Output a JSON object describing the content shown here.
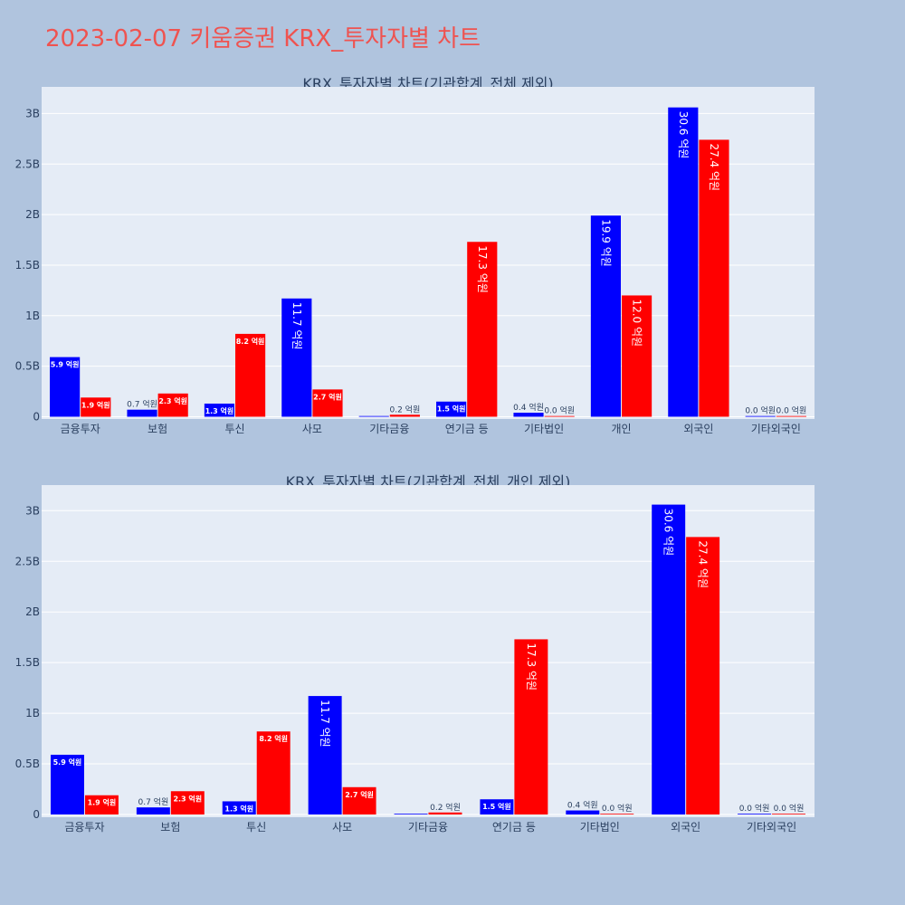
{
  "page_title": "2023-02-07 키움증권 KRX_투자자별 차트",
  "colors": {
    "series1": "#0000ff",
    "series2": "#ff0000",
    "plot_bg": "#e5ecf6",
    "page_bg": "#b0c4de",
    "title": "#ef5350"
  },
  "chart_data": [
    {
      "type": "bar",
      "title": "KRX_투자자별 차트(기관합계_전체 제외)",
      "categories": [
        "금융투자",
        "보험",
        "투신",
        "사모",
        "기타금융",
        "연기금 등",
        "기타법인",
        "개인",
        "외국인",
        "기타외국인"
      ],
      "series": [
        {
          "values": [
            0.59,
            0.07,
            0.13,
            1.17,
            0.0,
            0.15,
            0.04,
            1.99,
            3.06,
            0.002
          ],
          "labels": [
            "5.9 억원",
            "0.7 억원",
            "1.3 억원",
            "11.7 억원",
            "",
            "1.5 억원",
            "0.4 억원",
            "19.9 억원",
            "30.6 억원",
            "0.0 억원"
          ]
        },
        {
          "values": [
            0.19,
            0.23,
            0.82,
            0.27,
            0.02,
            1.73,
            0.003,
            1.2,
            2.74,
            0.002
          ],
          "labels": [
            "1.9 억원",
            "2.3 억원",
            "8.2 억원",
            "2.7 억원",
            "0.2 억원",
            "17.3 억원",
            "0.0 억원",
            "12.0 억원",
            "27.4 억원",
            "0.0 억원"
          ]
        }
      ],
      "yticks": [
        "0",
        "0.5B",
        "1B",
        "1.5B",
        "2B",
        "2.5B",
        "3B"
      ],
      "ylim": [
        0,
        3.2
      ],
      "grid": true
    },
    {
      "type": "bar",
      "title": "KRX_투자자별 차트(기관합계_전체_개인 제외)",
      "categories": [
        "금융투자",
        "보험",
        "투신",
        "사모",
        "기타금융",
        "연기금 등",
        "기타법인",
        "외국인",
        "기타외국인"
      ],
      "series": [
        {
          "values": [
            0.59,
            0.07,
            0.13,
            1.17,
            0.0,
            0.15,
            0.04,
            3.06,
            0.002
          ],
          "labels": [
            "5.9 억원",
            "0.7 억원",
            "1.3 억원",
            "11.7 억원",
            "",
            "1.5 억원",
            "0.4 억원",
            "30.6 억원",
            "0.0 억원"
          ]
        },
        {
          "values": [
            0.19,
            0.23,
            0.82,
            0.27,
            0.02,
            1.73,
            0.003,
            2.74,
            0.002
          ],
          "labels": [
            "1.9 억원",
            "2.3 억원",
            "8.2 억원",
            "2.7 억원",
            "0.2 억원",
            "17.3 억원",
            "0.0 억원",
            "27.4 억원",
            "0.0 억원"
          ]
        }
      ],
      "yticks": [
        "0",
        "0.5B",
        "1B",
        "1.5B",
        "2B",
        "2.5B",
        "3B"
      ],
      "ylim": [
        0,
        3.2
      ],
      "grid": true
    }
  ]
}
